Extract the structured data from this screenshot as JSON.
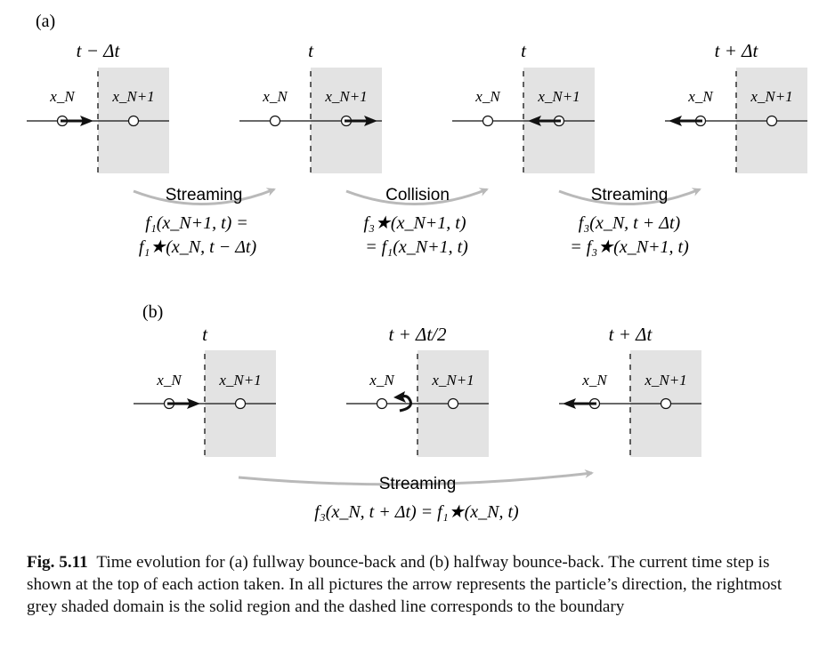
{
  "panel_a": {
    "label": "(a)",
    "steps": [
      {
        "time": "t − Δt",
        "left_node": "x_N",
        "right_node": "x_N+1",
        "arrow": "right"
      },
      {
        "time": "t",
        "left_node": "x_N",
        "right_node": "x_N+1",
        "arrow": "right"
      },
      {
        "time": "t",
        "left_node": "x_N",
        "right_node": "x_N+1",
        "arrow": "left"
      },
      {
        "time": "t + Δt",
        "left_node": "x_N",
        "right_node": "x_N+1",
        "arrow": "left"
      }
    ],
    "transitions": [
      {
        "action": "Streaming",
        "eq_line1": "f₁(x_N+1, t) =",
        "eq_line2": "f₁★(x_N, t − Δt)"
      },
      {
        "action": "Collision",
        "eq_line1": "f₃★(x_N+1, t)",
        "eq_line2": "= f₁(x_N+1, t)"
      },
      {
        "action": "Streaming",
        "eq_line1": "f₃(x_N, t + Δt)",
        "eq_line2": "= f₃★(x_N+1, t)"
      }
    ]
  },
  "panel_b": {
    "label": "(b)",
    "steps": [
      {
        "time": "t",
        "left_node": "x_N",
        "right_node": "x_N+1",
        "arrow": "right"
      },
      {
        "time": "t + Δt/2",
        "left_node": "x_N",
        "right_node": "x_N+1",
        "arrow": "u-turn"
      },
      {
        "time": "t + Δt",
        "left_node": "x_N",
        "right_node": "x_N+1",
        "arrow": "left"
      }
    ],
    "transition": {
      "action": "Streaming",
      "equation": "f₃(x_N, t + Δt) = f₁★(x_N, t)"
    }
  },
  "caption": {
    "fig_label": "Fig. 5.11",
    "text": "Time evolution for (a) fullway bounce-back and (b) halfway bounce-back. The current time step is shown at the top of each action taken. In all pictures the arrow represents the particle’s direction, the rightmost grey shaded domain is the solid region and the dashed line corresponds to the boundary"
  },
  "colors": {
    "solid_region": "#e3e3e3",
    "curve_arrow": "#b9b9b9",
    "ink": "#111111"
  }
}
